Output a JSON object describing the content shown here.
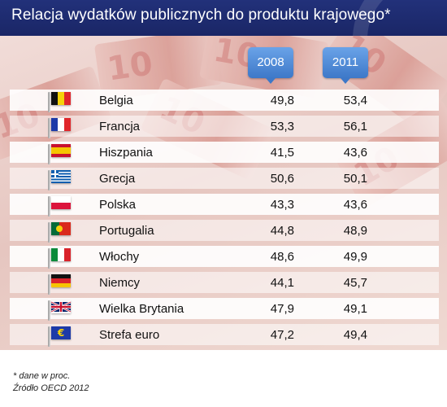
{
  "title": "Relacja wydatków publicznych do produktu krajowego*",
  "chart_data": {
    "type": "table",
    "columns": [
      "2008",
      "2011"
    ],
    "rows": [
      {
        "country": "Belgia",
        "flag": "belgium",
        "v2008": "49,8",
        "v2011": "53,4"
      },
      {
        "country": "Francja",
        "flag": "france",
        "v2008": "53,3",
        "v2011": "56,1"
      },
      {
        "country": "Hiszpania",
        "flag": "spain",
        "v2008": "41,5",
        "v2011": "43,6"
      },
      {
        "country": "Grecja",
        "flag": "greece",
        "v2008": "50,6",
        "v2011": "50,1"
      },
      {
        "country": "Polska",
        "flag": "poland",
        "v2008": "43,3",
        "v2011": "43,6"
      },
      {
        "country": "Portugalia",
        "flag": "portugal",
        "v2008": "44,8",
        "v2011": "48,9"
      },
      {
        "country": "Włochy",
        "flag": "italy",
        "v2008": "48,6",
        "v2011": "49,9"
      },
      {
        "country": "Niemcy",
        "flag": "germany",
        "v2008": "44,1",
        "v2011": "45,7"
      },
      {
        "country": "Wielka Brytania",
        "flag": "uk",
        "v2008": "47,9",
        "v2011": "49,1"
      },
      {
        "country": "Strefa euro",
        "flag": "eurozone",
        "v2008": "47,2",
        "v2011": "49,4"
      }
    ]
  },
  "footnote": "* dane w proc.",
  "source": "Źródło OECD 2012",
  "colors": {
    "header_bg": "#1f2d72",
    "year_box": "#4a86d4"
  }
}
